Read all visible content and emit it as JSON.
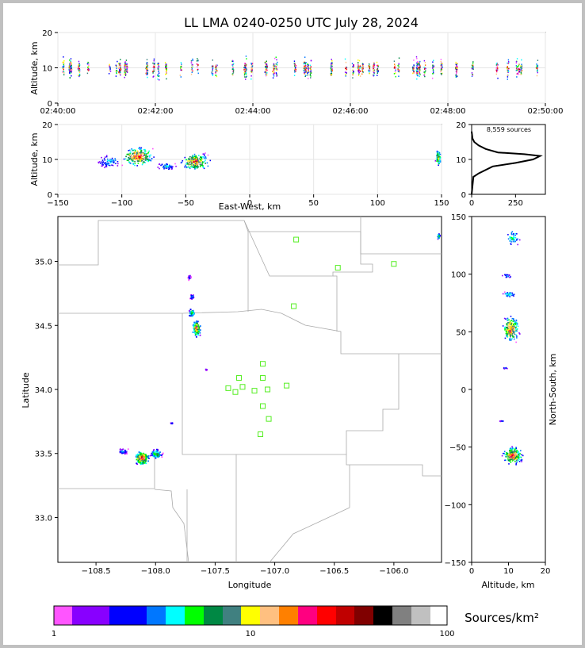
{
  "title": "LL LMA 0240-0250 UTC July 28, 2024",
  "colorbar_label": "Sources/km²",
  "colorbar_ticks": [
    "1",
    "10",
    "100"
  ],
  "colorbar_colors": [
    "#ff55ff",
    "#8800ff",
    "#0000ff",
    "#0077ff",
    "#00ffff",
    "#00ff00",
    "#008844",
    "#408080",
    "#ffff00",
    "#ffc080",
    "#ff8000",
    "#ff0080",
    "#ff0000",
    "#c00000",
    "#800000",
    "#000000",
    "#808080",
    "#c0c0c0",
    "#ffffff"
  ],
  "chart_data": [
    {
      "type": "scatter",
      "name": "time-height",
      "ylabel": "Altitude, km",
      "xlabel": "",
      "x_range": [
        "02:40:00",
        "02:50:00"
      ],
      "ylim": [
        0,
        20
      ],
      "xticks": [
        "02:40:00",
        "02:42:00",
        "02:44:00",
        "02:46:00",
        "02:48:00",
        "02:50:00"
      ],
      "yticks": [
        "0",
        "10",
        "20"
      ],
      "grid": true
    },
    {
      "type": "scatter",
      "name": "east-west-altitude",
      "xlabel": "East-West, km",
      "ylabel": "Altitude, km",
      "xlim": [
        -150,
        150
      ],
      "ylim": [
        0,
        20
      ],
      "xticks": [
        "−150",
        "−100",
        "−50",
        "0",
        "50",
        "100",
        "150"
      ],
      "yticks": [
        "0",
        "10",
        "20"
      ],
      "clusters": [
        {
          "x": -88,
          "y": 11
        },
        {
          "x": -43,
          "y": 9.5
        },
        {
          "x": 147,
          "y": 10.5
        }
      ],
      "grid": true
    },
    {
      "type": "line",
      "name": "altitude-histogram",
      "annotation": "8,559 sources",
      "xlim": [
        0,
        420
      ],
      "ylim": [
        0,
        20
      ],
      "xticks": [
        "0",
        "250"
      ],
      "yticks": [
        "0",
        "10",
        "20"
      ],
      "points": [
        [
          0,
          0
        ],
        [
          10,
          5
        ],
        [
          40,
          6
        ],
        [
          120,
          8
        ],
        [
          250,
          9
        ],
        [
          350,
          10
        ],
        [
          390,
          11
        ],
        [
          300,
          11.5
        ],
        [
          150,
          12
        ],
        [
          80,
          13
        ],
        [
          40,
          14
        ],
        [
          15,
          15
        ],
        [
          5,
          16
        ],
        [
          0,
          18
        ]
      ]
    },
    {
      "type": "scatter",
      "name": "plan-view",
      "xlabel": "Longitude",
      "ylabel": "Latitude",
      "xlim": [
        -108.82,
        -105.6
      ],
      "ylim": [
        32.65,
        35.35
      ],
      "xticks": [
        "−108.5",
        "−108.0",
        "−107.5",
        "−107.0",
        "−106.5",
        "−106.0"
      ],
      "yticks": [
        "33.0",
        "33.5",
        "34.0",
        "34.5",
        "35.0"
      ],
      "stations": [
        {
          "lon": -106.82,
          "lat": 35.17
        },
        {
          "lon": -106.47,
          "lat": 34.95
        },
        {
          "lon": -106.0,
          "lat": 34.98
        },
        {
          "lon": -106.84,
          "lat": 34.65
        },
        {
          "lon": -107.1,
          "lat": 34.2
        },
        {
          "lon": -107.3,
          "lat": 34.09
        },
        {
          "lon": -107.1,
          "lat": 34.09
        },
        {
          "lon": -107.39,
          "lat": 34.01
        },
        {
          "lon": -107.27,
          "lat": 34.02
        },
        {
          "lon": -107.33,
          "lat": 33.98
        },
        {
          "lon": -107.17,
          "lat": 33.99
        },
        {
          "lon": -107.06,
          "lat": 34.0
        },
        {
          "lon": -106.9,
          "lat": 34.03
        },
        {
          "lon": -107.1,
          "lat": 33.87
        },
        {
          "lon": -107.05,
          "lat": 33.77
        },
        {
          "lon": -107.12,
          "lat": 33.65
        }
      ],
      "clusters": [
        {
          "lon": -108.12,
          "lat": 33.47
        },
        {
          "lon": -107.66,
          "lat": 34.48
        },
        {
          "lon": -107.7,
          "lat": 34.72
        },
        {
          "lon": -105.63,
          "lat": 35.2
        }
      ]
    },
    {
      "type": "scatter",
      "name": "altitude-north-south",
      "xlabel": "Altitude, km",
      "ylabel": "North-South, km",
      "xlim": [
        0,
        20
      ],
      "ylim": [
        -150,
        150
      ],
      "xticks": [
        "0",
        "10",
        "20"
      ],
      "yticks": [
        "−150",
        "−100",
        "−50",
        "0",
        "50",
        "100",
        "150"
      ],
      "clusters": [
        {
          "x": 10,
          "y": 53
        },
        {
          "x": 11,
          "y": -57
        },
        {
          "x": 10,
          "y": 83
        },
        {
          "x": 11,
          "y": 132
        }
      ]
    }
  ]
}
